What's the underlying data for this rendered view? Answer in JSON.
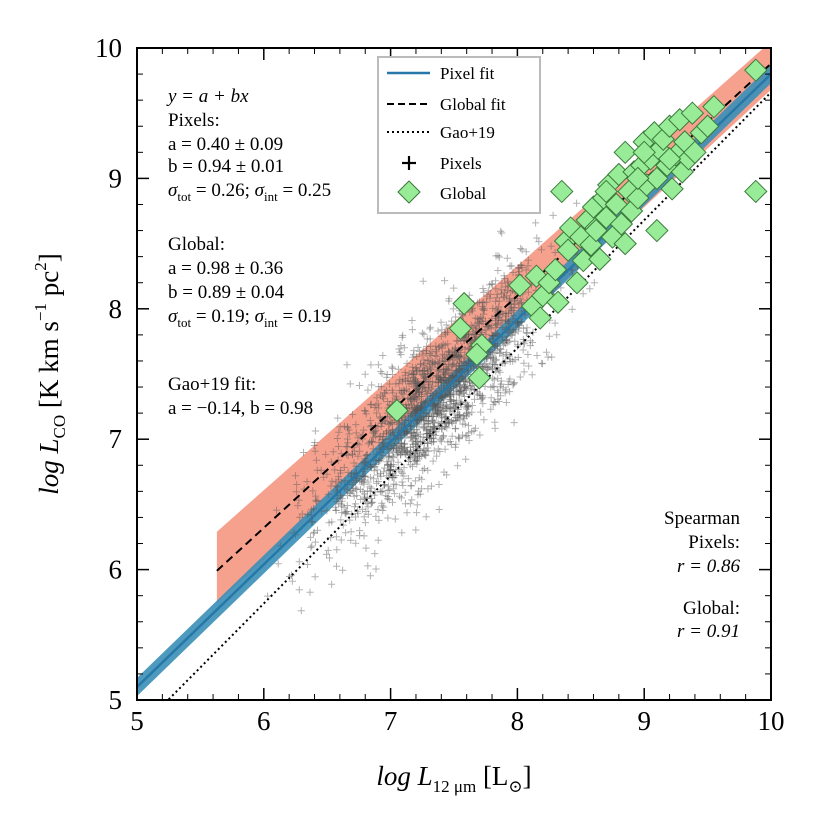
{
  "chart_data": {
    "type": "scatter",
    "xlabel": "log L_12μm [L_⊙]",
    "ylabel": "log L_CO [K km s^-1 pc^2]",
    "xlim": [
      5,
      10
    ],
    "ylim": [
      5,
      10
    ],
    "xticks": [
      "5",
      "6",
      "7",
      "8",
      "9",
      "10"
    ],
    "yticks": [
      "5",
      "6",
      "7",
      "8",
      "9",
      "10"
    ],
    "legend": {
      "position": "top-center",
      "entries": [
        "Pixel fit",
        "Global fit",
        "Gao+19",
        "Pixels",
        "Global"
      ]
    },
    "fits": {
      "pixel": {
        "a": 0.4,
        "b": 0.94,
        "x_range": [
          5,
          10
        ],
        "color": "#2778a8",
        "band_color": "#3a8fb7"
      },
      "global": {
        "a": 0.98,
        "b": 0.89,
        "x_range": [
          5.63,
          10
        ],
        "band_color": "#f4907a"
      },
      "gao19": {
        "a": -0.14,
        "b": 0.98,
        "x_range": [
          5.25,
          10
        ]
      }
    },
    "global_points": [
      [
        7.05,
        7.22
      ],
      [
        7.58,
        8.04
      ],
      [
        7.55,
        7.85
      ],
      [
        7.72,
        7.72
      ],
      [
        7.7,
        7.47
      ],
      [
        7.68,
        7.65
      ],
      [
        8.02,
        8.18
      ],
      [
        8.12,
        8.02
      ],
      [
        8.15,
        8.25
      ],
      [
        8.18,
        7.93
      ],
      [
        8.2,
        8.1
      ],
      [
        8.25,
        8.2
      ],
      [
        8.3,
        8.3
      ],
      [
        8.32,
        8.05
      ],
      [
        8.35,
        8.9
      ],
      [
        8.38,
        8.52
      ],
      [
        8.4,
        8.45
      ],
      [
        8.42,
        8.62
      ],
      [
        8.47,
        8.2
      ],
      [
        8.5,
        8.55
      ],
      [
        8.52,
        8.37
      ],
      [
        8.55,
        8.68
      ],
      [
        8.58,
        8.49
      ],
      [
        8.6,
        8.78
      ],
      [
        8.62,
        8.62
      ],
      [
        8.65,
        8.38
      ],
      [
        8.68,
        8.85
      ],
      [
        8.7,
        8.7
      ],
      [
        8.72,
        8.95
      ],
      [
        8.75,
        8.55
      ],
      [
        8.78,
        8.8
      ],
      [
        8.8,
        9.03
      ],
      [
        8.82,
        8.65
      ],
      [
        8.85,
        9.2
      ],
      [
        8.88,
        8.9
      ],
      [
        8.9,
        8.75
      ],
      [
        8.92,
        9.05
      ],
      [
        8.95,
        8.85
      ],
      [
        8.98,
        9.1
      ],
      [
        9.0,
        9.28
      ],
      [
        9.02,
        8.95
      ],
      [
        9.05,
        9.15
      ],
      [
        9.08,
        9.35
      ],
      [
        9.1,
        9.0
      ],
      [
        9.12,
        9.22
      ],
      [
        9.15,
        9.3
      ],
      [
        9.18,
        9.1
      ],
      [
        9.2,
        9.4
      ],
      [
        9.22,
        8.92
      ],
      [
        9.25,
        9.18
      ],
      [
        9.28,
        9.45
      ],
      [
        9.3,
        9.05
      ],
      [
        9.32,
        9.28
      ],
      [
        9.35,
        9.15
      ],
      [
        9.38,
        9.5
      ],
      [
        9.4,
        9.2
      ],
      [
        9.45,
        9.35
      ],
      [
        9.5,
        9.4
      ],
      [
        9.55,
        9.55
      ],
      [
        9.1,
        8.6
      ],
      [
        8.85,
        8.5
      ],
      [
        8.62,
        8.6
      ],
      [
        9.88,
        8.9
      ],
      [
        9.88,
        9.83
      ],
      [
        9.2,
        9.15
      ],
      [
        9.0,
        9.2
      ],
      [
        8.95,
        9.0
      ],
      [
        8.7,
        8.9
      ]
    ],
    "pixels_note": "about 2000 grey plus markers roughly following the pixel fit line with scatter about 0.26 dex; centered near x 7.3 and y 7.3"
  },
  "annotations": {
    "relation": "y = a + bx",
    "pixels_head": "Pixels:",
    "pixels_a": "a = 0.40 ± 0.09",
    "pixels_b": "b = 0.94 ± 0.01",
    "pixels_sigma_tot": "σ",
    "pixels_sigma_tot_sub": "tot",
    "pixels_sigma_tot_val": " = 0.26; ",
    "pixels_sigma_int": "σ",
    "pixels_sigma_int_sub": "int",
    "pixels_sigma_int_val": " = 0.25",
    "global_head": "Global:",
    "global_a": "a = 0.98 ± 0.36",
    "global_b": "b = 0.89 ± 0.04",
    "global_sigma_tot": "σ",
    "global_sigma_tot_sub": "tot",
    "global_sigma_tot_val": " = 0.19; ",
    "global_sigma_int": "σ",
    "global_sigma_int_sub": "int",
    "global_sigma_int_val": " = 0.19",
    "gao_head": "Gao+19 fit:",
    "gao_ab": "a = −0.14, b = 0.98",
    "spearman_head": "Spearman",
    "spearman_pixels": "Pixels:",
    "spearman_pixels_r": "r = 0.86",
    "spearman_global": "Global:",
    "spearman_global_r": "r = 0.91"
  },
  "axis_titles": {
    "x_main": "log L",
    "x_sub": "12 μm",
    "x_unit_open": " [L",
    "x_unit_sub": "⊙",
    "x_unit_close": "]",
    "y_main": "log L",
    "y_sub": "CO",
    "y_unit": " [K km s",
    "y_exp": "−1",
    "y_unit2": " pc",
    "y_exp2": "2",
    "y_close": "]"
  }
}
